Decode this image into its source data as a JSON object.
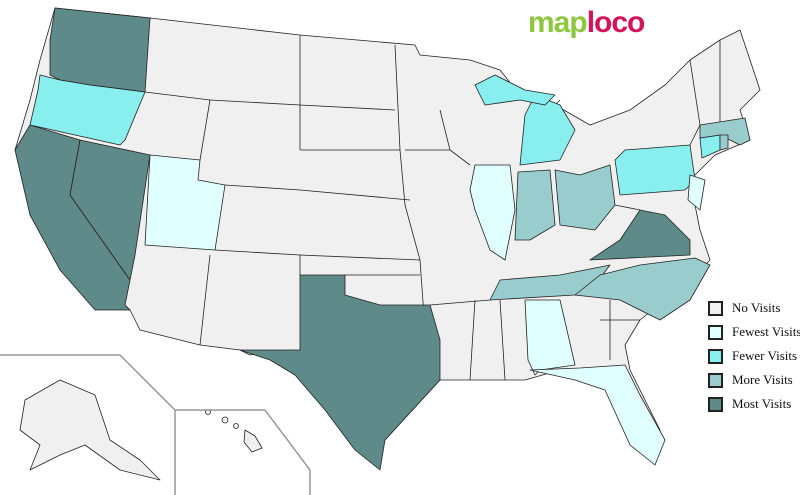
{
  "logo": {
    "part1": "map",
    "part2": "loco"
  },
  "colors": {
    "none": "#f0f0f0",
    "fewest": "#e0ffff",
    "fewer": "#88eeee",
    "more": "#99cccc",
    "most": "#5f8a8a"
  },
  "legend": [
    {
      "label": "No Visits",
      "level": "none"
    },
    {
      "label": "Fewest Visits",
      "level": "fewest"
    },
    {
      "label": "Fewer Visits",
      "level": "fewer"
    },
    {
      "label": "More Visits",
      "level": "more"
    },
    {
      "label": "Most Visits",
      "level": "most"
    }
  ],
  "states": {
    "Washington": "most",
    "California": "most",
    "Nevada": "most",
    "Texas": "most",
    "Virginia": "most",
    "Oregon": "fewer",
    "Michigan": "fewer",
    "Pennsylvania": "fewer",
    "Connecticut": "fewer",
    "Indiana": "more",
    "Ohio": "more",
    "Tennessee": "more",
    "North Carolina": "more",
    "Massachusetts": "more",
    "Rhode Island": "more",
    "Utah": "fewest",
    "Illinois": "fewest",
    "Alabama": "fewest",
    "Florida": "fewest",
    "New Jersey": "fewest"
  }
}
